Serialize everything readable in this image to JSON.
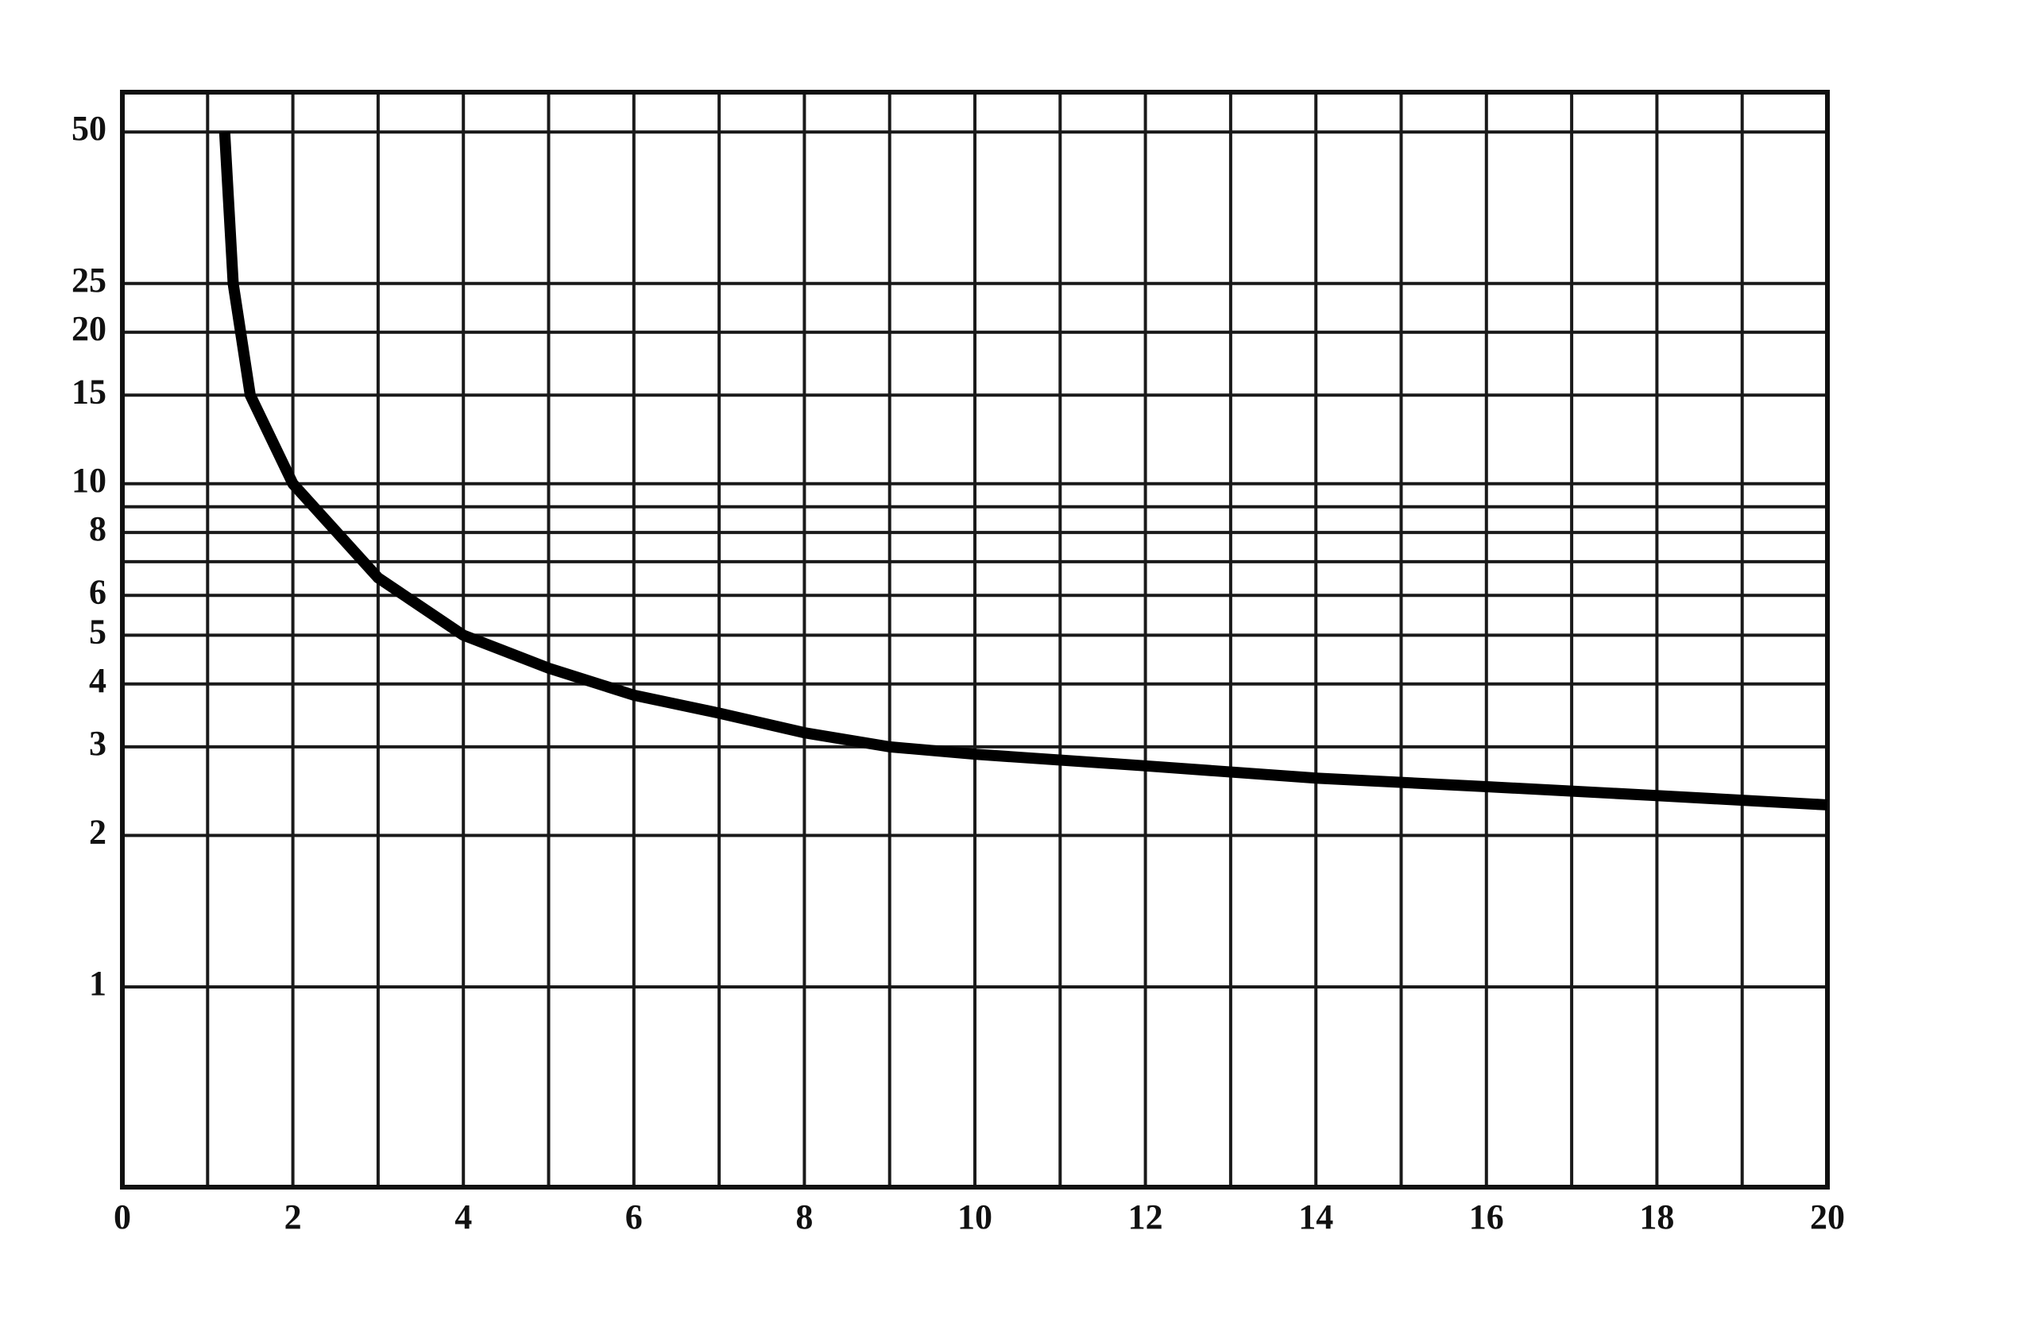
{
  "chart_data": {
    "type": "line",
    "x": [
      1.2,
      1.3,
      1.5,
      2,
      3,
      4,
      5,
      6,
      7,
      8,
      9,
      10,
      12,
      14,
      16,
      18,
      20
    ],
    "series": [
      {
        "color": "#000000",
        "values": [
          50,
          25,
          15,
          10,
          6.5,
          5,
          4.3,
          3.8,
          3.5,
          3.2,
          3.0,
          2.9,
          2.75,
          2.6,
          2.5,
          2.4,
          2.3
        ]
      }
    ],
    "xlim": [
      0,
      20
    ],
    "xticks": [
      0,
      2,
      4,
      6,
      8,
      10,
      12,
      14,
      16,
      18,
      20
    ],
    "minor_xticks": [
      1,
      3,
      5,
      7,
      9,
      11,
      13,
      15,
      17,
      19
    ],
    "ylim": [
      0.4,
      60
    ],
    "y_scale": "log",
    "yticks": [
      1,
      2,
      3,
      4,
      5,
      6,
      8,
      10,
      15,
      20,
      25,
      50
    ],
    "minor_yticks": [
      7,
      9
    ],
    "grid": true
  }
}
